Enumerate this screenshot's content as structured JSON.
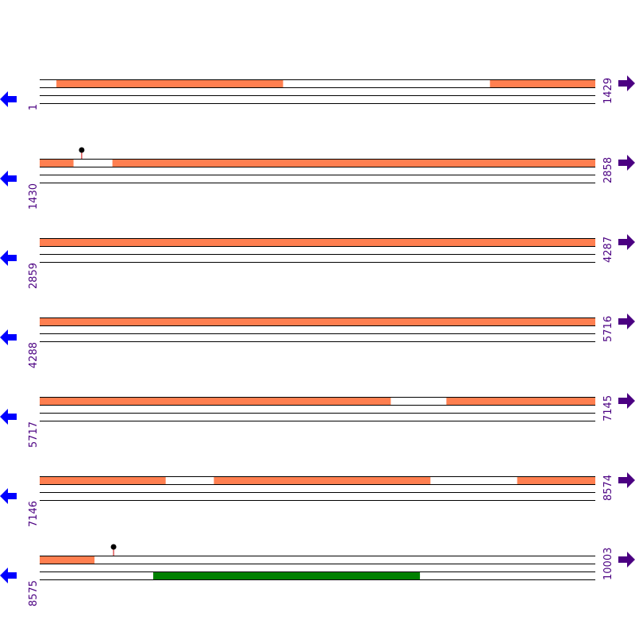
{
  "sequence": {
    "start": 1,
    "end": 10003,
    "bases_per_row": 1429,
    "rows": [
      {
        "start": "1",
        "end": "1429"
      },
      {
        "start": "1430",
        "end": "2858"
      },
      {
        "start": "2859",
        "end": "4287"
      },
      {
        "start": "4288",
        "end": "5716"
      },
      {
        "start": "5717",
        "end": "7145"
      },
      {
        "start": "7146",
        "end": "8574"
      },
      {
        "start": "8575",
        "end": "10003"
      }
    ]
  },
  "features": {
    "forward": [
      [
        44,
        627
      ],
      [
        1159,
        1517
      ],
      [
        1617,
        6620
      ],
      [
        6763,
        7470
      ],
      [
        7594,
        8151
      ],
      [
        8374,
        8716
      ]
    ],
    "reverse": [
      [
        8867,
        9553
      ]
    ],
    "markers": [
      1538,
      8765
    ]
  },
  "colors": {
    "forward_feature": "#ff7f50",
    "reverse_feature": "#008000",
    "label": "#4b0082",
    "left_arrow": "#0000ff",
    "right_arrow": "#4b0082",
    "marker_stem": "#cc0000",
    "marker_head": "#000000"
  },
  "icons": {
    "left": "arrow-left-icon",
    "right": "arrow-right-icon"
  }
}
